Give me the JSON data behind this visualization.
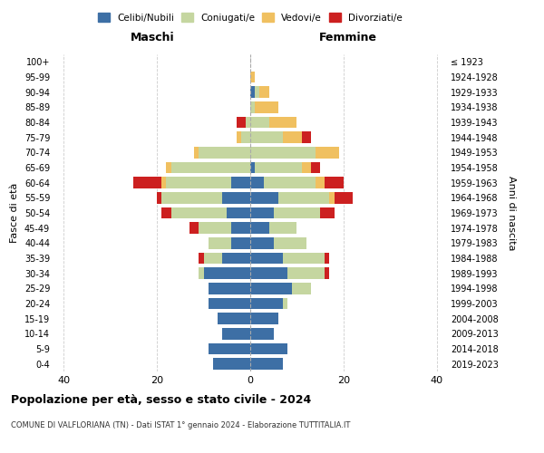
{
  "age_groups": [
    "0-4",
    "5-9",
    "10-14",
    "15-19",
    "20-24",
    "25-29",
    "30-34",
    "35-39",
    "40-44",
    "45-49",
    "50-54",
    "55-59",
    "60-64",
    "65-69",
    "70-74",
    "75-79",
    "80-84",
    "85-89",
    "90-94",
    "95-99",
    "100+"
  ],
  "birth_years": [
    "2019-2023",
    "2014-2018",
    "2009-2013",
    "2004-2008",
    "1999-2003",
    "1994-1998",
    "1989-1993",
    "1984-1988",
    "1979-1983",
    "1974-1978",
    "1969-1973",
    "1964-1968",
    "1959-1963",
    "1954-1958",
    "1949-1953",
    "1944-1948",
    "1939-1943",
    "1934-1938",
    "1929-1933",
    "1924-1928",
    "≤ 1923"
  ],
  "colors": {
    "celibi": "#3d6fa5",
    "coniugati": "#c5d6a0",
    "vedovi": "#f0c060",
    "divorziati": "#cc2020"
  },
  "legend_labels": [
    "Celibi/Nubili",
    "Coniugati/e",
    "Vedovi/e",
    "Divorziati/e"
  ],
  "title": "Popolazione per età, sesso e stato civile - 2024",
  "subtitle": "COMUNE DI VALFLORIANA (TN) - Dati ISTAT 1° gennaio 2024 - Elaborazione TUTTITALIA.IT",
  "xlabel_left": "Maschi",
  "xlabel_right": "Femmine",
  "ylabel_left": "Fasce di età",
  "ylabel_right": "Anni di nascita",
  "xlim": 42,
  "maschi": {
    "celibi": [
      8,
      9,
      6,
      7,
      9,
      9,
      10,
      6,
      4,
      4,
      5,
      6,
      4,
      0,
      0,
      0,
      0,
      0,
      0,
      0,
      0
    ],
    "coniugati": [
      0,
      0,
      0,
      0,
      0,
      0,
      1,
      4,
      5,
      7,
      12,
      13,
      14,
      17,
      11,
      2,
      1,
      0,
      0,
      0,
      0
    ],
    "vedovi": [
      0,
      0,
      0,
      0,
      0,
      0,
      0,
      0,
      0,
      0,
      0,
      0,
      1,
      1,
      1,
      1,
      0,
      0,
      0,
      0,
      0
    ],
    "divorziati": [
      0,
      0,
      0,
      0,
      0,
      0,
      0,
      1,
      0,
      2,
      2,
      1,
      6,
      0,
      0,
      0,
      2,
      0,
      0,
      0,
      0
    ]
  },
  "femmine": {
    "nubili": [
      7,
      8,
      5,
      6,
      7,
      9,
      8,
      7,
      5,
      4,
      5,
      6,
      3,
      1,
      0,
      0,
      0,
      0,
      1,
      0,
      0
    ],
    "coniugate": [
      0,
      0,
      0,
      0,
      1,
      4,
      8,
      9,
      7,
      6,
      10,
      11,
      11,
      10,
      14,
      7,
      4,
      1,
      1,
      0,
      0
    ],
    "vedove": [
      0,
      0,
      0,
      0,
      0,
      0,
      0,
      0,
      0,
      0,
      0,
      1,
      2,
      2,
      5,
      4,
      6,
      5,
      2,
      1,
      0
    ],
    "divorziate": [
      0,
      0,
      0,
      0,
      0,
      0,
      1,
      1,
      0,
      0,
      3,
      4,
      4,
      2,
      0,
      2,
      0,
      0,
      0,
      0,
      0
    ]
  }
}
